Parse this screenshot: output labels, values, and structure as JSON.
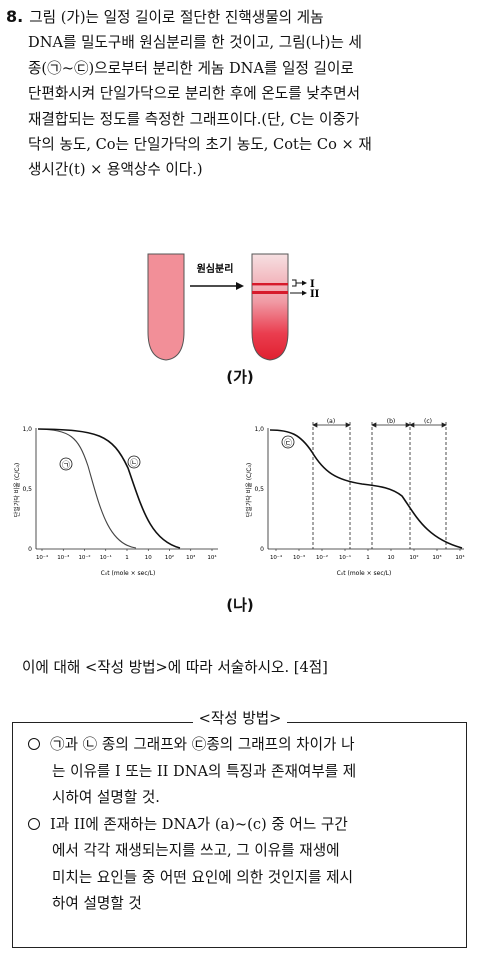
{
  "question": {
    "number": "8.",
    "lines": [
      "그림 (가)는 일정 길이로 절단한 진핵생물의 게놈",
      "DNA를 밀도구배 원심분리를 한 것이고, 그림(나)는 세",
      "종(㉠~㉢)으로부터 분리한 게놈 DNA를 일정 길이로",
      "단편화시켜 단일가닥으로 분리한 후에 온도를 낮추면서",
      "재결합되는 정도를 측정한 그래프이다.(단, C는 이중가",
      "닥의 농도, Co는 단일가닥의 초기 농도, Cot는 Co × 재",
      "생시간(t) × 용액상수 이다.)"
    ]
  },
  "figure_ga": {
    "arrow_label": "원심분리",
    "band_1": "I",
    "band_2": "II",
    "caption": "(가)"
  },
  "figure_na": {
    "caption": "(나)",
    "left_graph": {
      "ylabel": "단일가닥 비율 (C/C₀)",
      "xlabel": "C₀t (mole × sec/L)",
      "yticks": [
        "1,0",
        "0,5",
        "0"
      ],
      "xticks": [
        "10⁻⁴",
        "10⁻³",
        "10⁻²",
        "10⁻¹",
        "1",
        "10",
        "10²",
        "10³",
        "10⁴"
      ],
      "curve_1": "㉠",
      "curve_2": "㉡"
    },
    "right_graph": {
      "ylabel": "단일가닥 비율 (C/C₀)",
      "xlabel": "C₀t (mole × sec/L)",
      "yticks": [
        "1,0",
        "0,5",
        "0"
      ],
      "xticks": [
        "10⁻⁴",
        "10⁻³",
        "10⁻²",
        "10⁻¹",
        "1",
        "10",
        "10²",
        "10³",
        "10⁴"
      ],
      "curve_3": "㉢",
      "region_a": "(a)",
      "region_b": "(b)",
      "region_c": "(c)"
    }
  },
  "instruction": "이에 대해 <작성 방법>에 따라 서술하시오. [4점]",
  "guide": {
    "title": "<작성 방법>",
    "item1_lines": [
      "㉠과 ㉡ 종의 그래프와 ㉢종의 그래프의 차이가 나",
      "는 이유를 I 또는 II DNA의 특징과 존재여부를 제",
      "시하여 설명할 것."
    ],
    "item2_lines": [
      "I과 II에 존재하는 DNA가 (a)~(c) 중 어느 구간",
      "에서 각각 재생되는지를 쓰고, 그 이유를 재생에",
      "미치는 요인들 중 어떤 요인에 의한 것인지를 제시",
      "하여 설명할 것"
    ]
  }
}
